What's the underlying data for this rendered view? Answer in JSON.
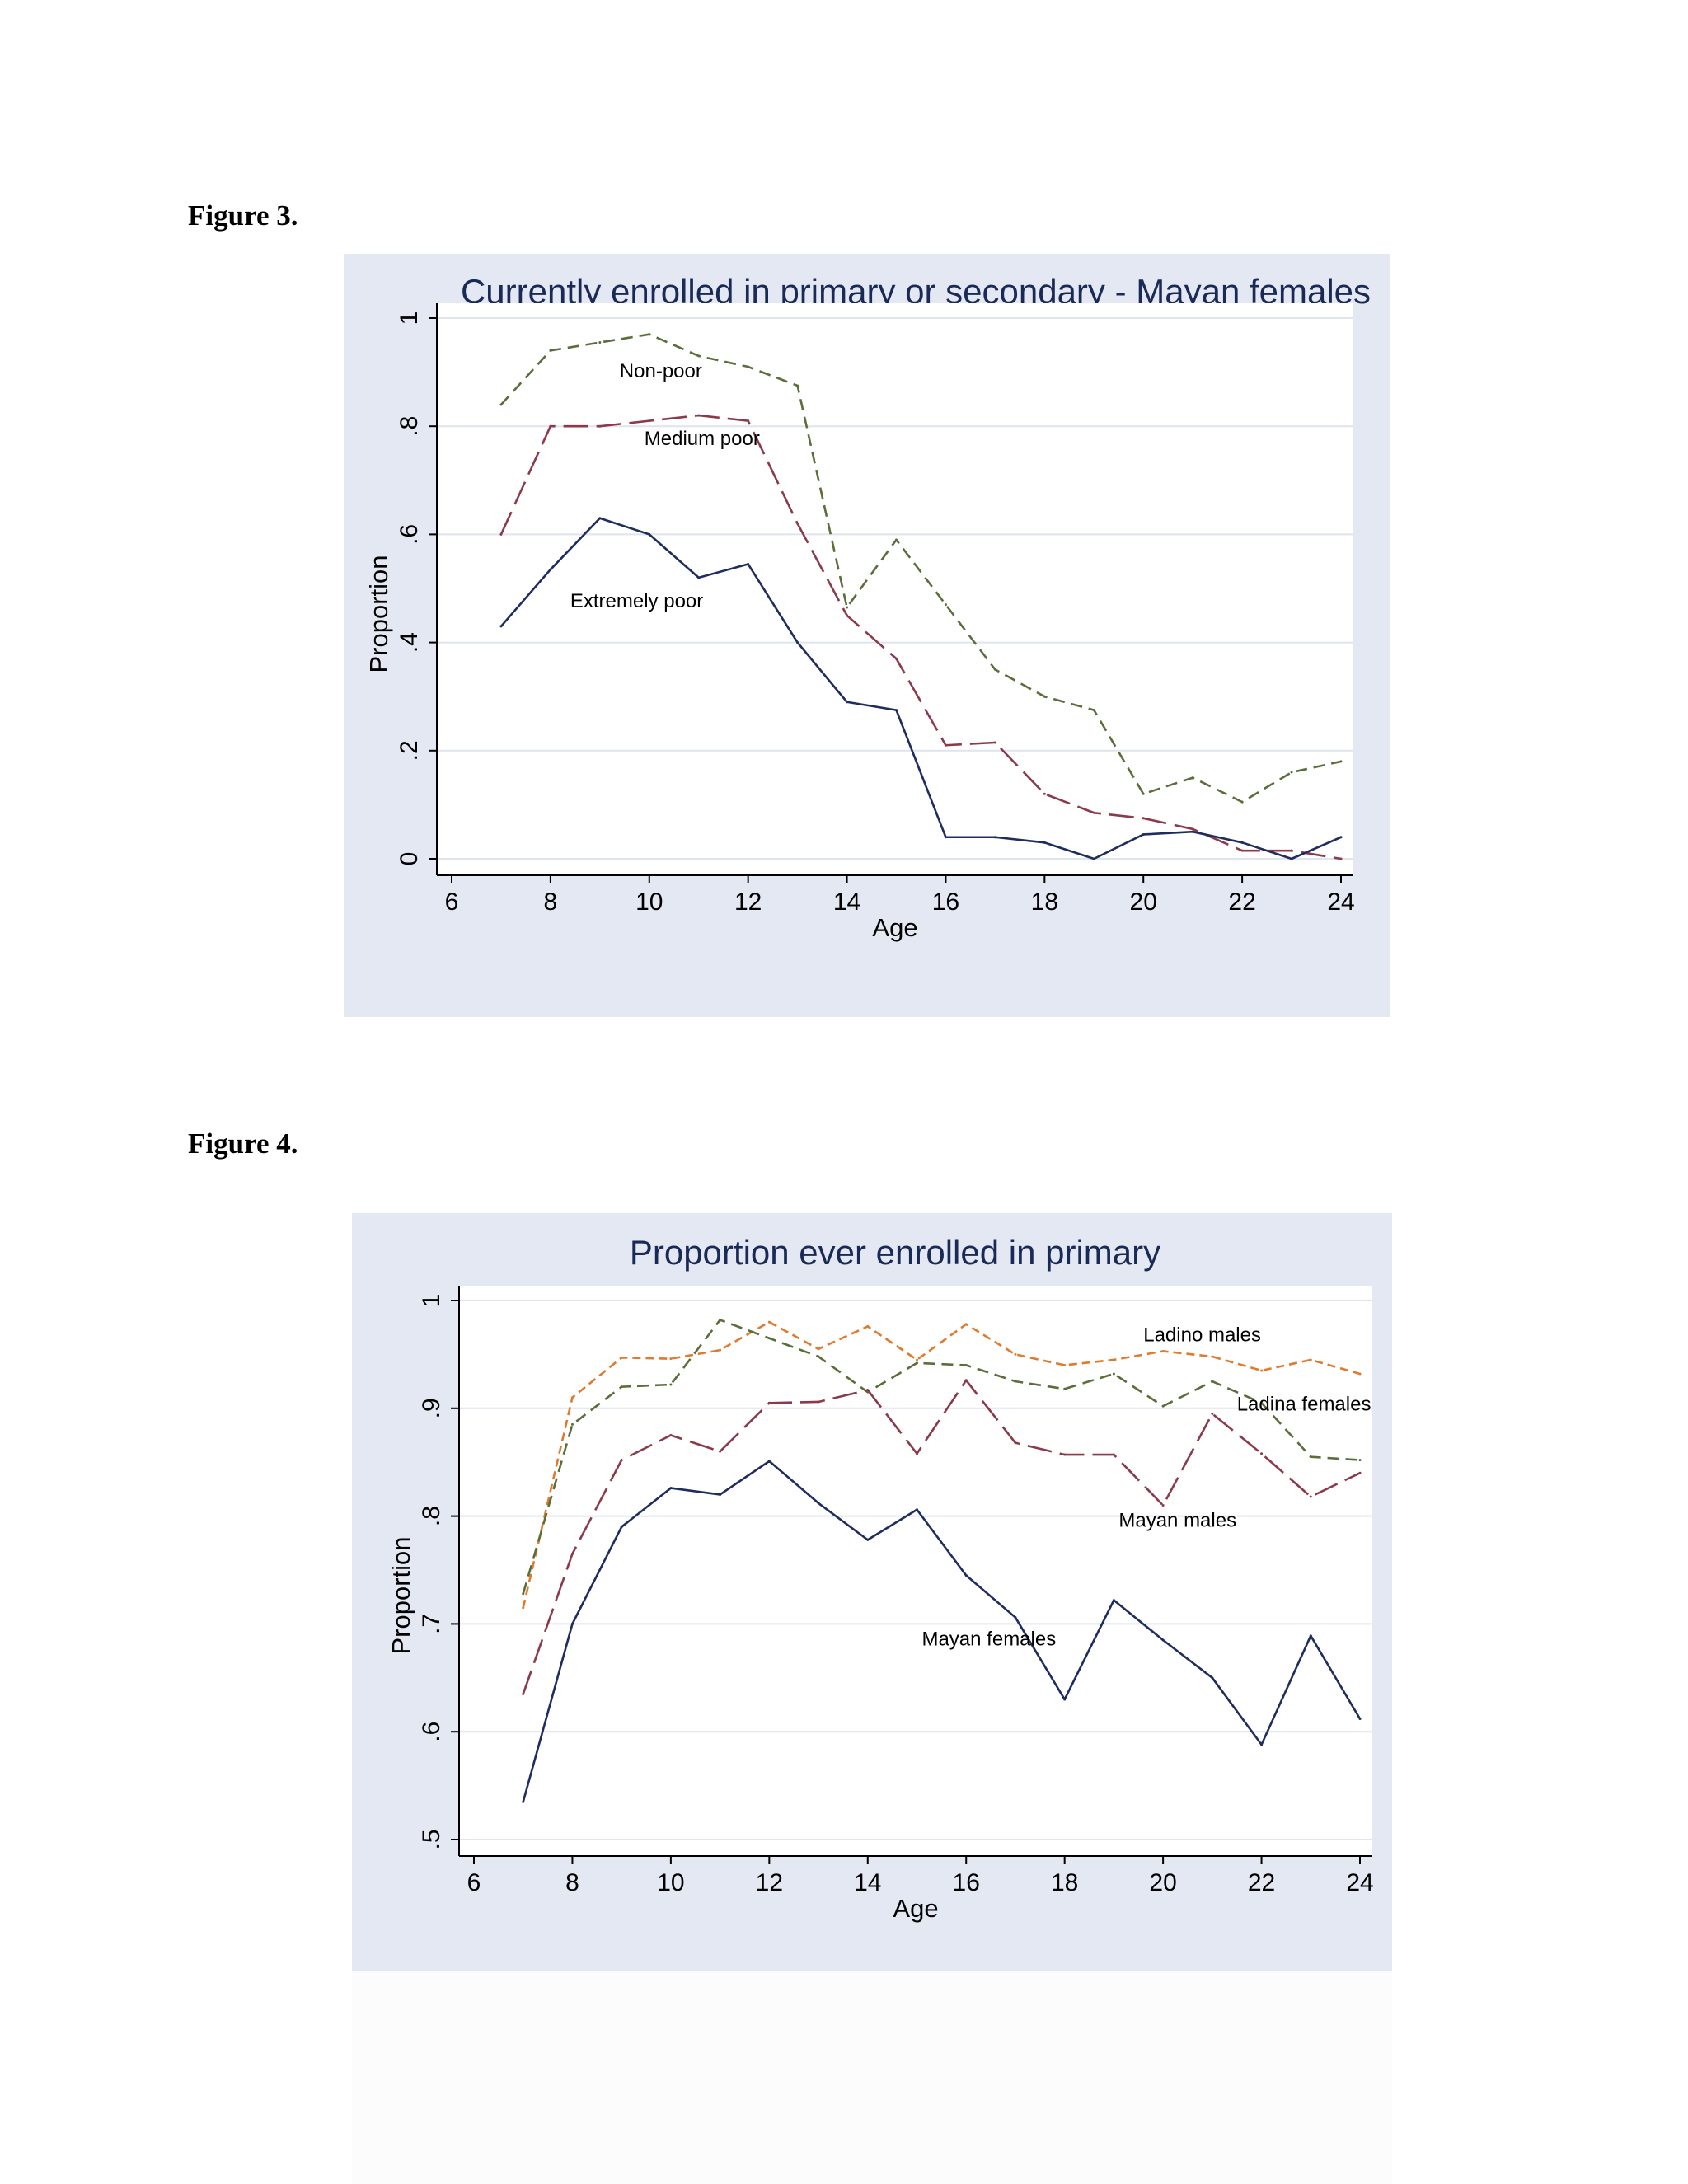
{
  "captions": {
    "fig3": "Figure 3.",
    "fig4": "Figure 4."
  },
  "chart_data": [
    {
      "type": "line",
      "title": "Currently enrolled in primary or secondary - Mayan females",
      "xlabel": "Age",
      "ylabel": "Proportion",
      "xlim": [
        6,
        24
      ],
      "ylim": [
        0,
        1
      ],
      "xticks": [
        6,
        8,
        10,
        12,
        14,
        16,
        18,
        20,
        22,
        24
      ],
      "yticks": [
        0,
        0.2,
        0.4,
        0.6,
        0.8,
        1
      ],
      "ytick_labels": [
        "0",
        ".2",
        ".4",
        ".6",
        ".8",
        "1"
      ],
      "grid": true,
      "x": [
        7,
        8,
        9,
        10,
        11,
        12,
        13,
        14,
        15,
        16,
        17,
        18,
        19,
        20,
        21,
        22,
        23,
        24
      ],
      "series": [
        {
          "name": "Non-poor",
          "color": "#5b6e3a",
          "dash": "14,8",
          "label_x": 9.4,
          "label_y": 0.89,
          "values": [
            0.84,
            0.94,
            0.955,
            0.97,
            0.93,
            0.91,
            0.875,
            0.465,
            0.59,
            0.47,
            0.35,
            0.3,
            0.275,
            0.12,
            0.15,
            0.105,
            0.16,
            0.18
          ]
        },
        {
          "name": "Medium poor",
          "color": "#8a3a4a",
          "dash": "30,10",
          "label_x": 9.9,
          "label_y": 0.765,
          "values": [
            0.6,
            0.8,
            0.8,
            0.81,
            0.82,
            0.81,
            0.62,
            0.45,
            0.37,
            0.21,
            0.215,
            0.12,
            0.085,
            0.075,
            0.055,
            0.015,
            0.015,
            0.0
          ]
        },
        {
          "name": "Extremely poor",
          "color": "#1f2d5e",
          "dash": "",
          "label_x": 8.4,
          "label_y": 0.465,
          "values": [
            0.43,
            0.535,
            0.63,
            0.6,
            0.52,
            0.545,
            0.4,
            0.29,
            0.275,
            0.04,
            0.04,
            0.03,
            0.0,
            0.045,
            0.05,
            0.03,
            0.0,
            0.04
          ]
        }
      ]
    },
    {
      "type": "line",
      "title": "Proportion ever enrolled in primary",
      "xlabel": "Age",
      "ylabel": "Proportion",
      "xlim": [
        6,
        24
      ],
      "ylim": [
        0.5,
        1
      ],
      "xticks": [
        6,
        8,
        10,
        12,
        14,
        16,
        18,
        20,
        22,
        24
      ],
      "yticks": [
        0.5,
        0.6,
        0.7,
        0.8,
        0.9,
        1
      ],
      "ytick_labels": [
        ".5",
        ".6",
        ".7",
        ".8",
        ".9",
        "1"
      ],
      "grid": true,
      "x": [
        7,
        8,
        9,
        10,
        11,
        12,
        13,
        14,
        15,
        16,
        17,
        18,
        19,
        20,
        21,
        22,
        23,
        24
      ],
      "series": [
        {
          "name": "Ladino males",
          "color": "#e07a2c",
          "dash": "10,6",
          "label_x": 19.6,
          "label_y": 0.962,
          "values": [
            0.715,
            0.91,
            0.947,
            0.946,
            0.954,
            0.98,
            0.955,
            0.976,
            0.945,
            0.978,
            0.95,
            0.94,
            0.945,
            0.953,
            0.948,
            0.935,
            0.945,
            0.932
          ]
        },
        {
          "name": "Ladina females",
          "color": "#5b6e3a",
          "dash": "14,8",
          "label_x": 21.5,
          "label_y": 0.898,
          "values": [
            0.728,
            0.885,
            0.92,
            0.922,
            0.982,
            0.965,
            0.948,
            0.915,
            0.942,
            0.94,
            0.925,
            0.918,
            0.932,
            0.902,
            0.925,
            0.905,
            0.855,
            0.852
          ]
        },
        {
          "name": "Mayan males",
          "color": "#8a3a4a",
          "dash": "30,10",
          "label_x": 19.1,
          "label_y": 0.79,
          "values": [
            0.635,
            0.765,
            0.852,
            0.875,
            0.86,
            0.905,
            0.906,
            0.917,
            0.858,
            0.926,
            0.868,
            0.857,
            0.857,
            0.81,
            0.895,
            0.858,
            0.818,
            0.84
          ]
        },
        {
          "name": "Mayan females",
          "color": "#1f2d5e",
          "dash": "",
          "label_x": 15.1,
          "label_y": 0.68,
          "values": [
            0.535,
            0.7,
            0.79,
            0.826,
            0.82,
            0.851,
            0.812,
            0.778,
            0.806,
            0.745,
            0.706,
            0.63,
            0.722,
            0.685,
            0.65,
            0.588,
            0.689,
            0.612
          ]
        }
      ]
    }
  ]
}
